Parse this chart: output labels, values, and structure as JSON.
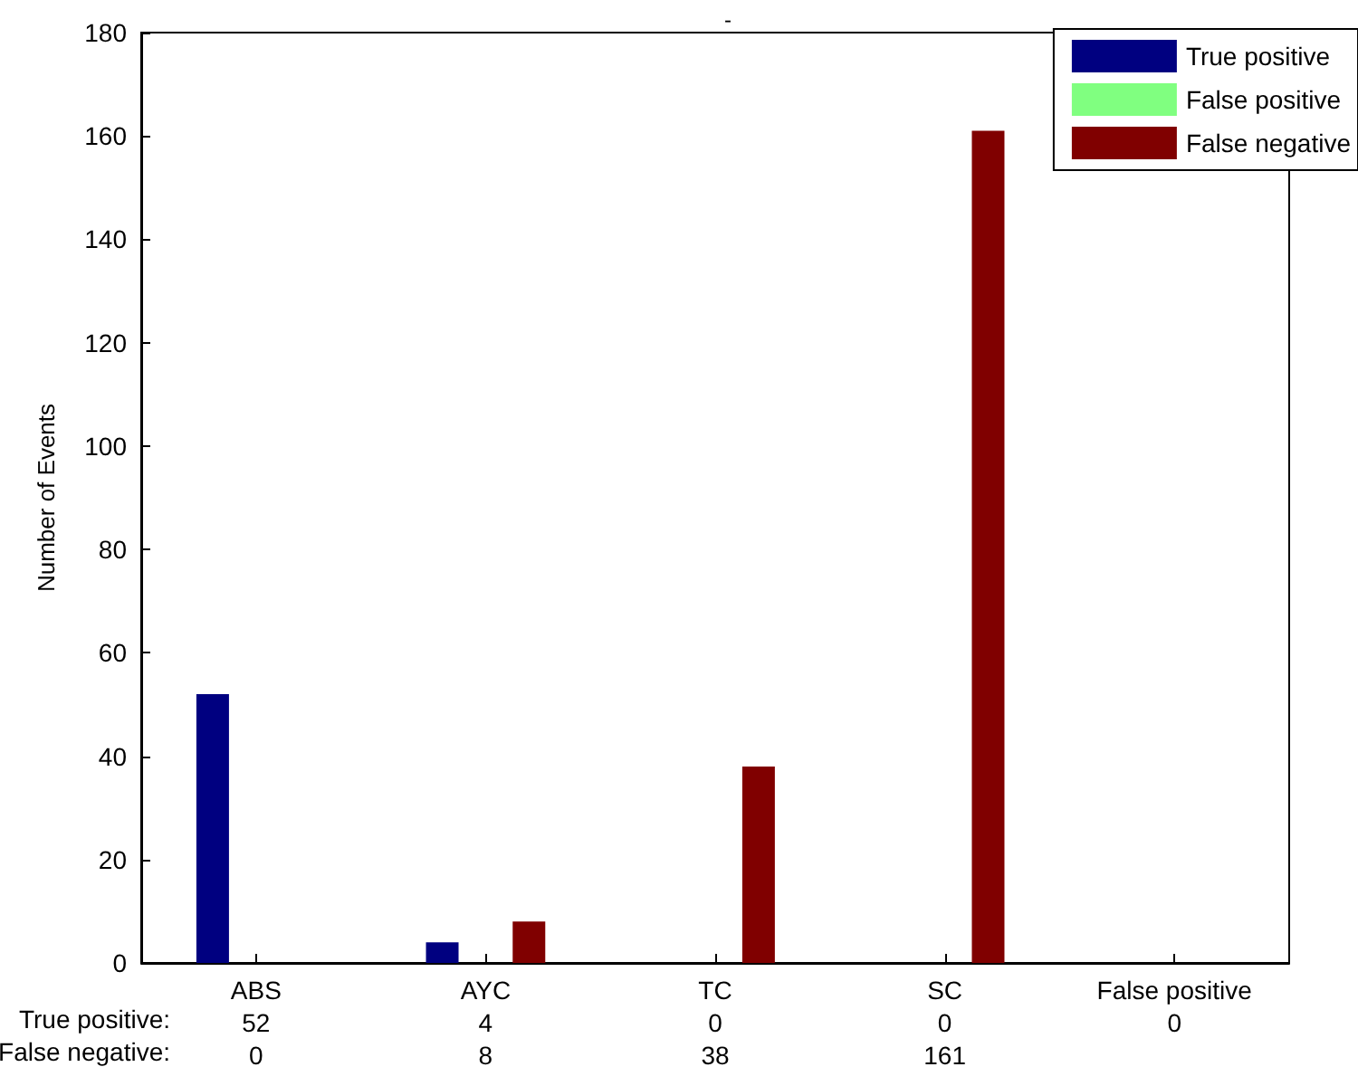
{
  "chart_data": {
    "type": "bar",
    "title": "-",
    "ylabel": "Number of Events",
    "categories": [
      "ABS",
      "AYC",
      "TC",
      "SC",
      "False positive"
    ],
    "series": [
      {
        "name": "True positive",
        "color": "#000080",
        "values": [
          52,
          4,
          0,
          0,
          0
        ],
        "value_labels": [
          "52",
          "4",
          "0",
          "0",
          "0"
        ]
      },
      {
        "name": "False positive",
        "color": "#80ff80",
        "values": [
          null,
          null,
          null,
          null,
          0
        ]
      },
      {
        "name": "False negative",
        "color": "#800000",
        "values": [
          0,
          8,
          38,
          161,
          null
        ],
        "value_labels": [
          "0",
          "8",
          "38",
          "161",
          null
        ]
      }
    ],
    "annotations": [
      "True positive:",
      "False negative:"
    ],
    "ylim": [
      0,
      180
    ],
    "yticks": [
      0,
      20,
      40,
      60,
      80,
      100,
      120,
      140,
      160,
      180
    ],
    "grid": false,
    "legend": "top right"
  }
}
